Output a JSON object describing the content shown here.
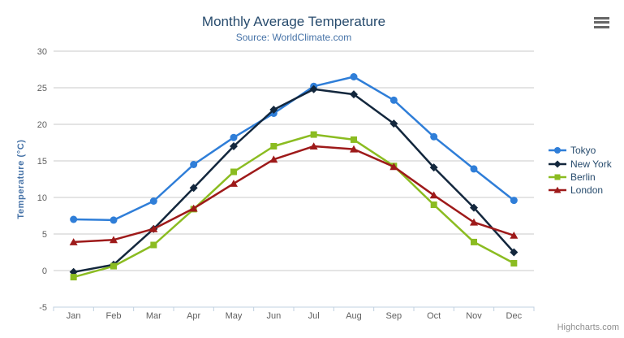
{
  "chart": {
    "credits_label": "Highcharts.com",
    "colors": {
      "title": "#274b6d",
      "subtitle": "#4572A7",
      "axis_label": "#606060",
      "axis_title": "#4572A7",
      "grid_line": "#C8C8C8",
      "axis_line": "#C0D0E0",
      "legend_text": "#274b6d",
      "credits": "#8f8f8f",
      "menu_icon": "#666666",
      "background": "#FFFFFF"
    }
  },
  "icons": {
    "menu": "hamburger-icon"
  },
  "chart_data": {
    "type": "line",
    "title": "Monthly Average Temperature",
    "subtitle": "Source: WorldClimate.com",
    "xlabel": "",
    "ylabel": "Temperature (°C)",
    "categories": [
      "Jan",
      "Feb",
      "Mar",
      "Apr",
      "May",
      "Jun",
      "Jul",
      "Aug",
      "Sep",
      "Oct",
      "Nov",
      "Dec"
    ],
    "ylim": [
      -5,
      30
    ],
    "yticks": [
      -5,
      0,
      5,
      10,
      15,
      20,
      25,
      30
    ],
    "grid": true,
    "legend_position": "right",
    "series": [
      {
        "name": "Tokyo",
        "color": "#2f7ed8",
        "marker": "circle",
        "values": [
          7.0,
          6.9,
          9.5,
          14.5,
          18.2,
          21.5,
          25.2,
          26.5,
          23.3,
          18.3,
          13.9,
          9.6
        ]
      },
      {
        "name": "New York",
        "color": "#13273d",
        "marker": "diamond",
        "values": [
          -0.2,
          0.8,
          5.7,
          11.3,
          17.0,
          22.0,
          24.8,
          24.1,
          20.1,
          14.1,
          8.6,
          2.5
        ]
      },
      {
        "name": "Berlin",
        "color": "#8bbc21",
        "marker": "square",
        "values": [
          -0.9,
          0.6,
          3.5,
          8.4,
          13.5,
          17.0,
          18.6,
          17.9,
          14.3,
          9.0,
          3.9,
          1.0
        ]
      },
      {
        "name": "London",
        "color": "#9e1a1a",
        "marker": "triangle",
        "values": [
          3.9,
          4.2,
          5.7,
          8.5,
          11.9,
          15.2,
          17.0,
          16.6,
          14.2,
          10.3,
          6.6,
          4.8
        ]
      }
    ]
  }
}
